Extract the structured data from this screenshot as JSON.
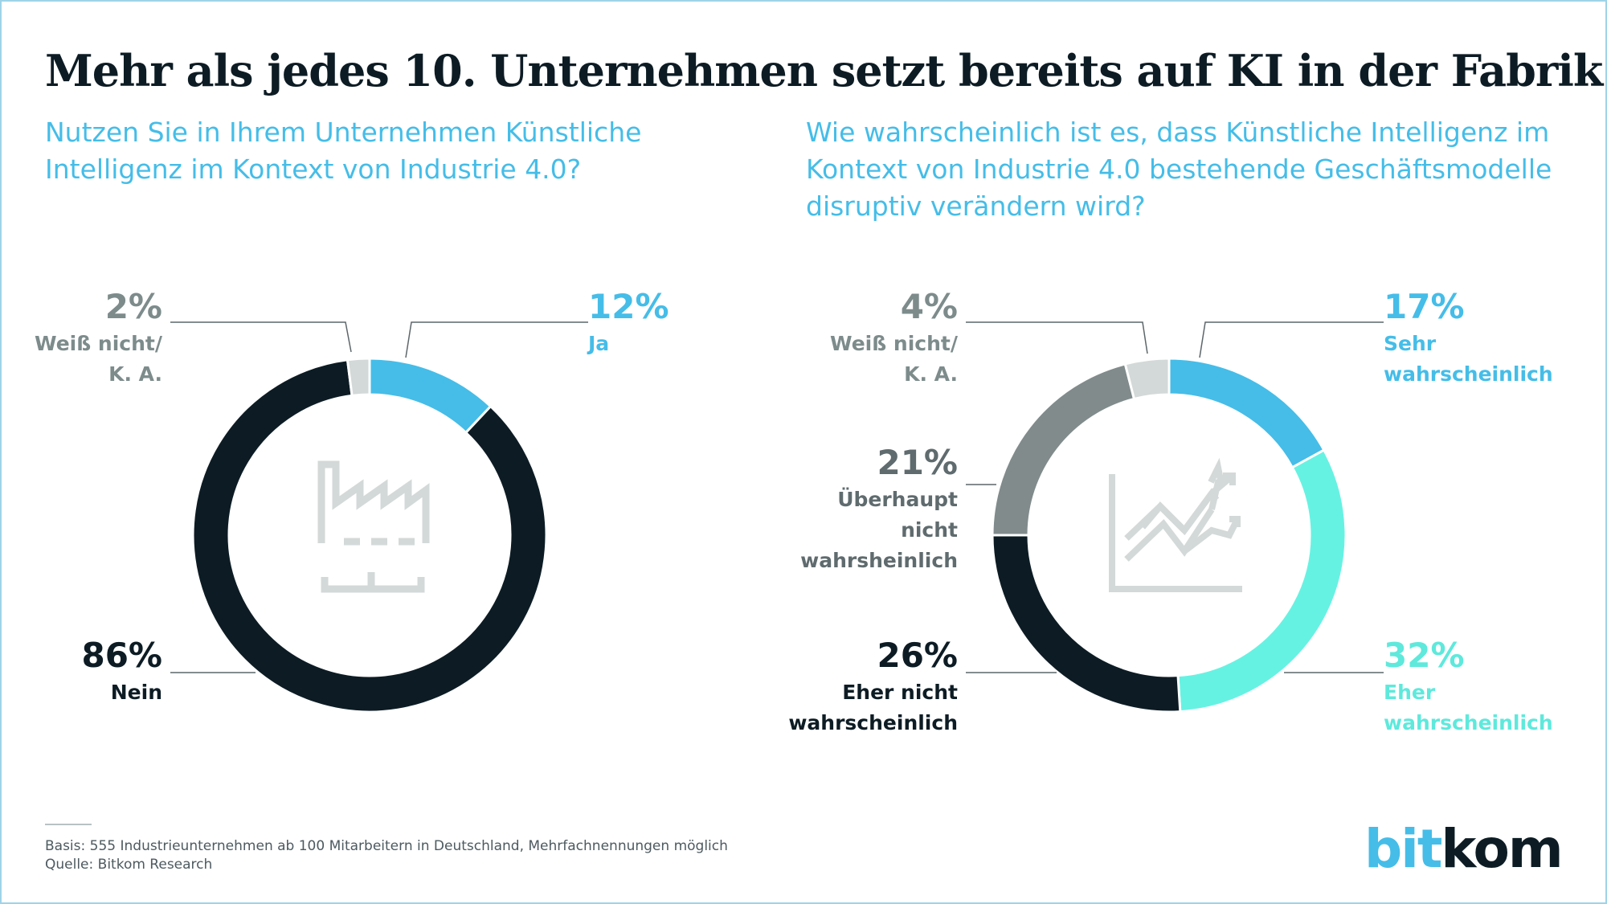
{
  "title": "Mehr als jedes 10. Unternehmen setzt bereits auf KI in der Fabrik",
  "footer": {
    "basis": "Basis: 555 Industrieunternehmen ab 100 Mitarbeitern in Deutschland, Mehrfachnennungen möglich",
    "source": "Quelle: Bitkom Research"
  },
  "logo": {
    "part1": "bit",
    "part2": "kom"
  },
  "icons": [
    "factory-icon",
    "rising-trend-chart-icon"
  ],
  "chart_data": [
    {
      "type": "pie",
      "variant": "donut",
      "title": "Nutzen Sie in Ihrem Unternehmen Künstliche Intelligenz im Kontext von Industrie 4.0?",
      "start": "12 o'clock, clockwise",
      "slices": [
        {
          "id": "ja",
          "pct_label": "12%",
          "value": 12,
          "label_lines": [
            "Ja"
          ],
          "color": "#45bde8",
          "text_color": "#45bde8"
        },
        {
          "id": "nein",
          "pct_label": "86%",
          "value": 86,
          "label_lines": [
            "Nein"
          ],
          "color": "#0d1c24",
          "text_color": "#0d1c24"
        },
        {
          "id": "weiss-nicht",
          "pct_label": "2%",
          "value": 2,
          "label_lines": [
            "Weiß nicht/",
            "K. A."
          ],
          "color": "#d3d9d8",
          "text_color": "#7d8b8b"
        }
      ]
    },
    {
      "type": "pie",
      "variant": "donut",
      "title": "Wie wahrscheinlich ist es, dass Künstliche Intelligenz im Kontext von Industrie 4.0 bestehende Geschäftsmodelle disruptiv verändern wird?",
      "start": "12 o'clock, clockwise",
      "slices": [
        {
          "id": "sehr",
          "pct_label": "17%",
          "value": 17,
          "label_lines": [
            "Sehr",
            "wahrscheinlich"
          ],
          "color": "#45bde8",
          "text_color": "#45bde8"
        },
        {
          "id": "eher",
          "pct_label": "32%",
          "value": 32,
          "label_lines": [
            "Eher",
            "wahrscheinlich"
          ],
          "color": "#66f2e2",
          "text_color": "#5ee9dc"
        },
        {
          "id": "eher-nicht",
          "pct_label": "26%",
          "value": 26,
          "label_lines": [
            "Eher nicht",
            "wahrscheinlich"
          ],
          "color": "#0d1c24",
          "text_color": "#0d1c24"
        },
        {
          "id": "ueberhaupt-nicht",
          "pct_label": "21%",
          "value": 21,
          "label_lines": [
            "Überhaupt",
            "nicht",
            "wahrsheinlich"
          ],
          "color": "#818b8b",
          "text_color": "#5f6b6e"
        },
        {
          "id": "weiss-nicht",
          "pct_label": "4%",
          "value": 4,
          "label_lines": [
            "Weiß nicht/",
            "K. A."
          ],
          "color": "#d3d9d8",
          "text_color": "#7d8b8b"
        }
      ]
    }
  ]
}
